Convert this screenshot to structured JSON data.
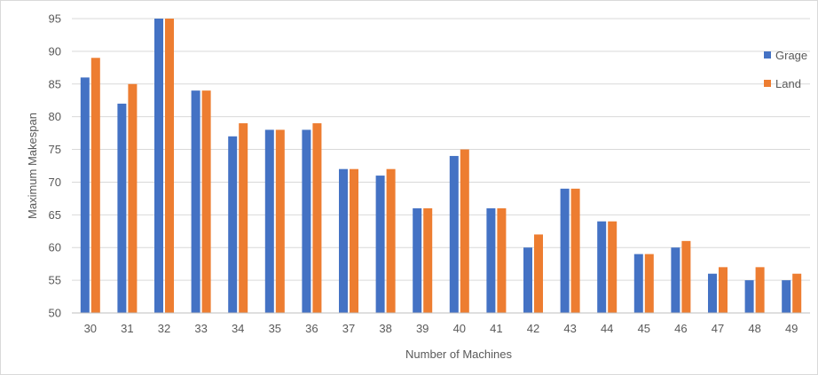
{
  "chart_data": {
    "type": "bar",
    "title": "",
    "xlabel": "Number of Machines",
    "ylabel": "Maximum Makespan",
    "ylim": [
      50,
      95
    ],
    "yticks": [
      50,
      55,
      60,
      65,
      70,
      75,
      80,
      85,
      90,
      95
    ],
    "categories": [
      "30",
      "31",
      "32",
      "33",
      "34",
      "35",
      "36",
      "37",
      "38",
      "39",
      "40",
      "41",
      "42",
      "43",
      "44",
      "45",
      "46",
      "47",
      "48",
      "49"
    ],
    "series": [
      {
        "name": "Grage",
        "color": "#4472C4",
        "values": [
          86,
          82,
          95,
          84,
          77,
          78,
          78,
          72,
          71,
          66,
          74,
          66,
          60,
          69,
          64,
          59,
          60,
          56,
          55,
          55
        ]
      },
      {
        "name": "Land",
        "color": "#ED7D31",
        "values": [
          89,
          85,
          95,
          84,
          79,
          78,
          79,
          72,
          72,
          66,
          75,
          66,
          62,
          69,
          64,
          59,
          61,
          57,
          57,
          56
        ]
      }
    ],
    "grid": true,
    "legend_position": "right"
  }
}
